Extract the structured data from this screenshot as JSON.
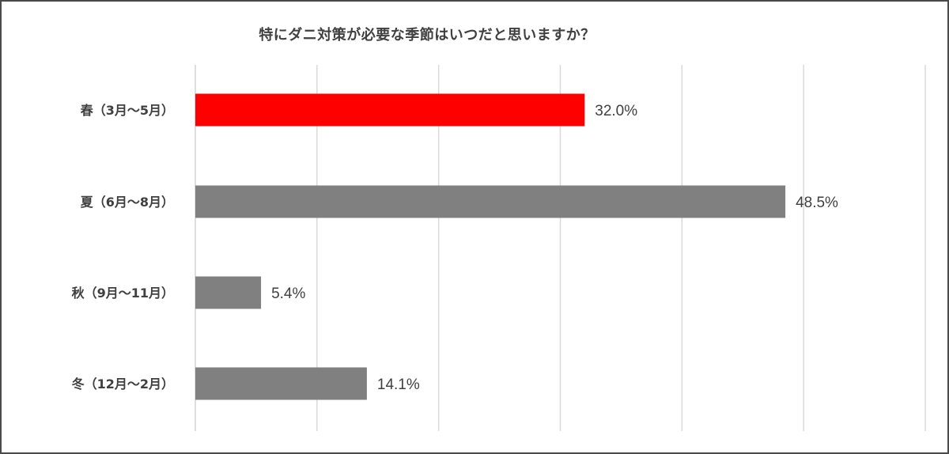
{
  "chart_data": {
    "type": "bar",
    "orientation": "horizontal",
    "title": "特にダニ対策が必要な季節はいつだと思いますか？",
    "categories": [
      "春（3月～5月）",
      "夏（6月～8月）",
      "秋（9月～11月）",
      "冬（12月～2月）"
    ],
    "values": [
      32.0,
      48.5,
      5.4,
      14.1
    ],
    "data_labels": [
      "32.0%",
      "48.5%",
      "5.4%",
      "14.1%"
    ],
    "highlight_index": 0,
    "xlim": [
      0,
      60
    ],
    "grid": true,
    "legend": "none"
  },
  "colors": {
    "highlight": "#ff0000",
    "bar": "#808080",
    "grid": "#d9d9d9",
    "text": "#404040",
    "border": "#4a4a4a"
  }
}
